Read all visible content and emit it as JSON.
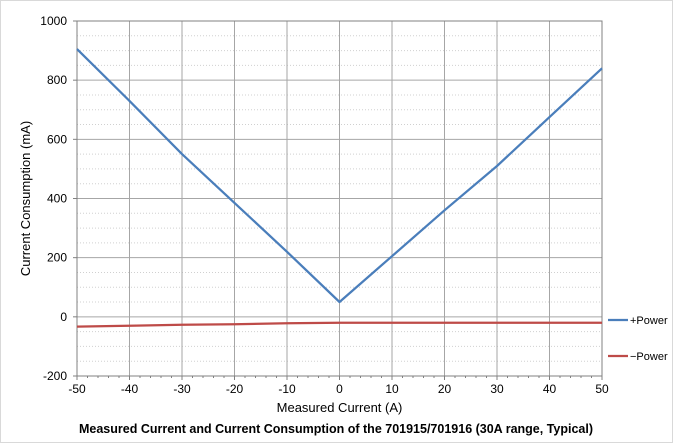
{
  "chart_data": {
    "type": "line",
    "title": "Measured Current and Current Consumption of the 701915/701916 (30A range, Typical)",
    "xlabel": "Measured Current (A)",
    "ylabel": "Current Consumption (mA)",
    "xlim": [
      -50,
      50
    ],
    "ylim": [
      -200,
      1000
    ],
    "xticks": [
      "-50",
      "-40",
      "-30",
      "-20",
      "-10",
      "0",
      "10",
      "20",
      "30",
      "40",
      "50"
    ],
    "yticks": [
      "-200",
      "0",
      "200",
      "400",
      "600",
      "800",
      "1000"
    ],
    "grid": true,
    "legend_position": "right",
    "series": [
      {
        "name": "+Power",
        "color": "#4a7ebb",
        "x": [
          -50,
          -40,
          -30,
          -20,
          -10,
          0,
          10,
          20,
          30,
          40,
          50
        ],
        "y": [
          905,
          730,
          550,
          385,
          220,
          50,
          205,
          360,
          510,
          675,
          840
        ]
      },
      {
        "name": "−Power",
        "color": "#be4b48",
        "x": [
          -50,
          -40,
          -30,
          -20,
          -10,
          0,
          10,
          20,
          30,
          40,
          50
        ],
        "y": [
          -33,
          -30,
          -27,
          -25,
          -22,
          -20,
          -20,
          -20,
          -20,
          -20,
          -20
        ]
      }
    ]
  }
}
